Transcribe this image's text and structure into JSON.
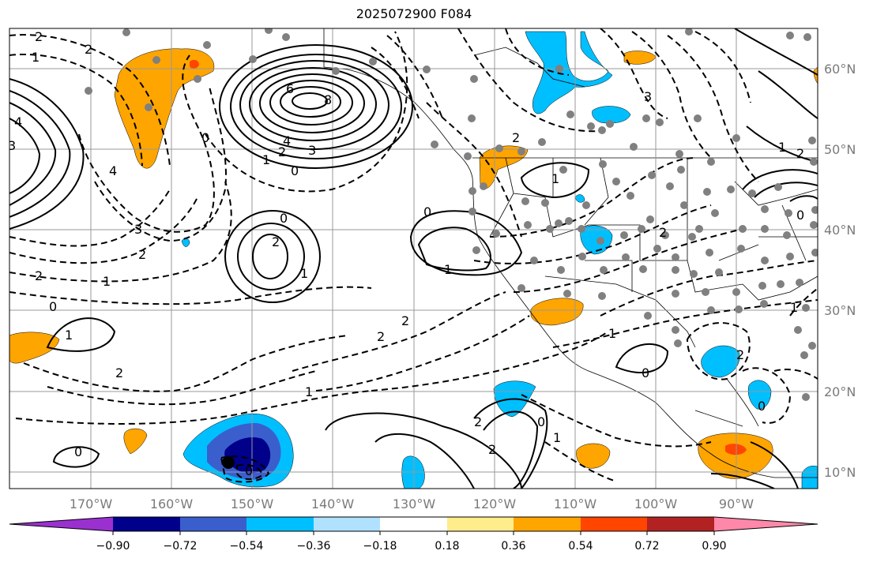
{
  "title": "2025072900 F084",
  "lat_labels": [
    "60°N",
    "50°N",
    "40°N",
    "30°N",
    "20°N",
    "10°N"
  ],
  "lon_labels": [
    "170°W",
    "160°W",
    "150°W",
    "140°W",
    "130°W",
    "120°W",
    "110°W",
    "100°W",
    "90°W"
  ],
  "colorbar": {
    "tick_labels": [
      "−0.90",
      "−0.72",
      "−0.54",
      "−0.36",
      "−0.18",
      "0.18",
      "0.36",
      "0.54",
      "0.72",
      "0.90"
    ],
    "colors": [
      "#9b30d0",
      "#00008b",
      "#3a5fcd",
      "#00bfff",
      "#b0e2ff",
      "#ffffff",
      "#ffec8b",
      "#ffa500",
      "#ff4500",
      "#b22222",
      "#ff88aa"
    ]
  },
  "contour_labels": [
    "2",
    "2",
    "1",
    "3",
    "4",
    "6",
    "8",
    "4",
    "3",
    "2",
    "1",
    "0",
    "0",
    "4",
    "3",
    "2",
    "2",
    "1",
    "0",
    "2",
    "1",
    "0",
    "1",
    "1",
    "2",
    "2",
    "1",
    "2",
    "0",
    "1",
    "2",
    "2",
    "0",
    "1",
    "2",
    "0",
    "3",
    "1",
    "2",
    "0",
    "1",
    "2",
    "0",
    "2",
    "1",
    "0",
    "0"
  ]
}
